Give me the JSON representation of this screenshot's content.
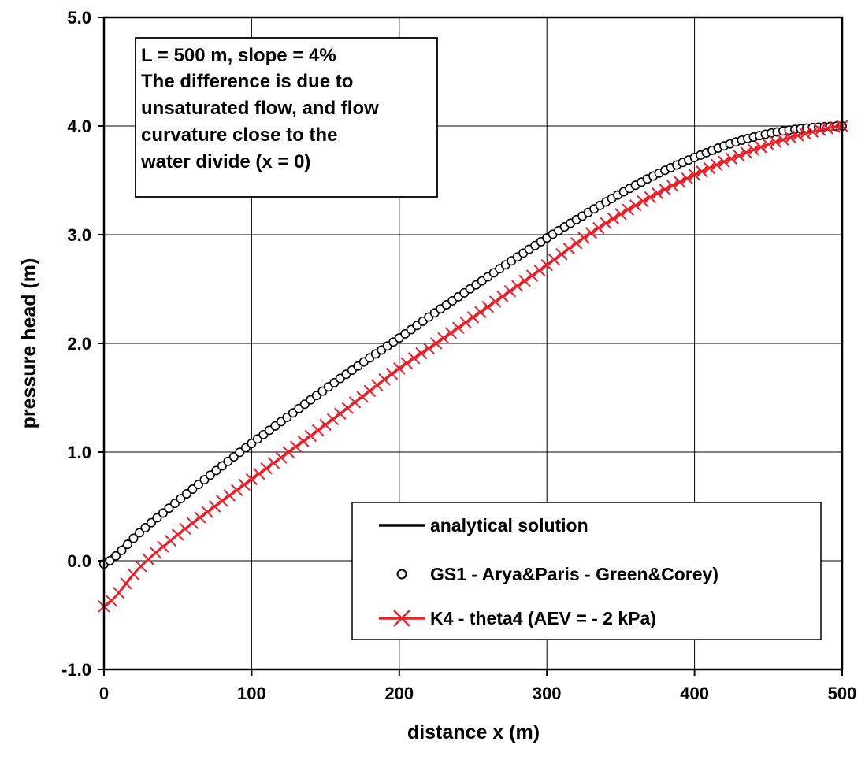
{
  "chart_data": {
    "type": "line",
    "xlabel": "distance x (m)",
    "ylabel": "pressure head (m)",
    "xlim": [
      0,
      500
    ],
    "ylim": [
      -1.0,
      5.0
    ],
    "xticks": [
      0,
      100,
      200,
      300,
      400,
      500
    ],
    "yticks": [
      -1.0,
      0.0,
      1.0,
      2.0,
      3.0,
      4.0,
      5.0
    ],
    "xtick_labels": [
      "0",
      "100",
      "200",
      "300",
      "400",
      "500"
    ],
    "ytick_labels": [
      "-1.0",
      "0.0",
      "1.0",
      "2.0",
      "3.0",
      "4.0",
      "5.0"
    ],
    "grid": true,
    "legend_position": "lower-right",
    "annotation": [
      "L = 500 m, slope = 4%",
      "The difference is due to",
      "unsaturated flow, and flow",
      "curvature close to the",
      "water divide (x = 0)"
    ],
    "series": [
      {
        "name": "analytical solution",
        "style": "line",
        "color": "#000000",
        "x": [
          0,
          25,
          50,
          75,
          100,
          125,
          150,
          175,
          200,
          225,
          250,
          275,
          300,
          325,
          350,
          375,
          400,
          425,
          450,
          475,
          500
        ],
        "y": [
          0.0,
          0.29,
          0.57,
          0.84,
          1.1,
          1.35,
          1.6,
          1.84,
          2.07,
          2.31,
          2.54,
          2.77,
          2.99,
          3.2,
          3.4,
          3.57,
          3.72,
          3.85,
          3.94,
          3.99,
          4.0
        ]
      },
      {
        "name": "GS1 - Arya&Paris - Green&Corey)",
        "style": "circle",
        "color": "#000000",
        "x": [
          0,
          25,
          50,
          75,
          100,
          125,
          150,
          175,
          200,
          225,
          250,
          275,
          300,
          325,
          350,
          375,
          400,
          425,
          450,
          475,
          500
        ],
        "y": [
          -0.03,
          0.27,
          0.55,
          0.82,
          1.08,
          1.33,
          1.58,
          1.82,
          2.05,
          2.29,
          2.52,
          2.75,
          2.97,
          3.18,
          3.38,
          3.56,
          3.71,
          3.84,
          3.93,
          3.98,
          4.0
        ]
      },
      {
        "name": "K4 - theta4 (AEV = - 2 kPa)",
        "style": "line-x",
        "color": "#e8202a",
        "x": [
          0,
          25,
          50,
          75,
          100,
          125,
          150,
          175,
          200,
          225,
          250,
          275,
          300,
          325,
          350,
          375,
          400,
          425,
          450,
          475,
          500
        ],
        "y": [
          -0.42,
          -0.05,
          0.24,
          0.5,
          0.75,
          1.0,
          1.25,
          1.51,
          1.77,
          2.0,
          2.24,
          2.48,
          2.72,
          2.97,
          3.19,
          3.38,
          3.55,
          3.7,
          3.83,
          3.93,
          4.0
        ]
      }
    ]
  }
}
